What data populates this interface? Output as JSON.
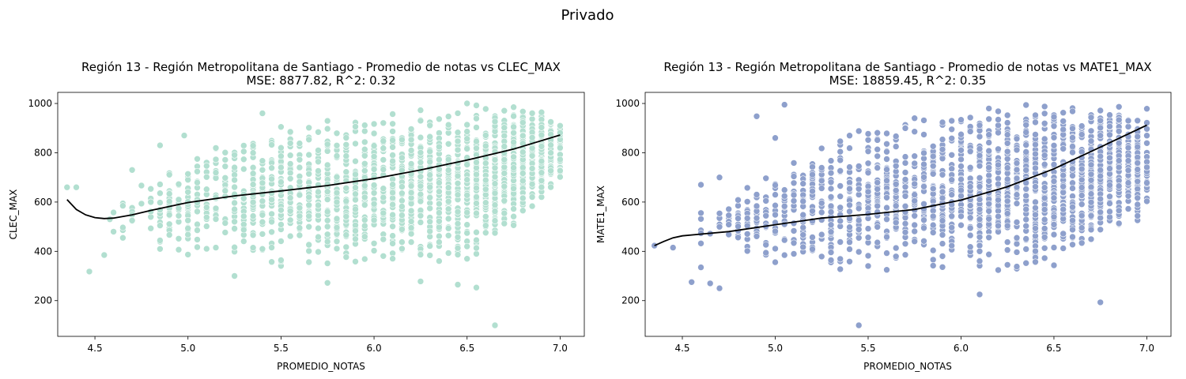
{
  "figure": {
    "suptitle": "Privado"
  },
  "chart_data": [
    {
      "type": "scatter",
      "title": "Región 13 - Región Metropolitana de Santiago - Promedio de notas vs CLEC_MAX",
      "subtitle": "MSE: 8877.82, R^2: 0.32",
      "xlabel": "PROMEDIO_NOTAS",
      "ylabel": "CLEC_MAX",
      "xlim": [
        4.3,
        7.13
      ],
      "ylim": [
        55,
        1045
      ],
      "xticks": [
        4.5,
        5.0,
        5.5,
        6.0,
        6.5,
        7.0
      ],
      "xtick_labels": [
        "4.5",
        "5.0",
        "5.5",
        "6.0",
        "6.5",
        "7.0"
      ],
      "yticks": [
        200,
        400,
        600,
        800,
        1000
      ],
      "ytick_labels": [
        "200",
        "400",
        "600",
        "800",
        "1000"
      ],
      "grid": false,
      "point_color": "#b2dfd0",
      "trend_color": "#000000",
      "trend": {
        "x": [
          4.35,
          4.4,
          4.45,
          4.5,
          4.55,
          4.6,
          4.7,
          4.8,
          5.0,
          5.25,
          5.5,
          5.75,
          6.0,
          6.25,
          6.5,
          6.75,
          7.0
        ],
        "y": [
          610,
          570,
          548,
          537,
          533,
          535,
          548,
          566,
          598,
          625,
          645,
          667,
          695,
          730,
          770,
          815,
          872
        ]
      },
      "notable_points": {
        "x": [
          4.35,
          4.4,
          4.47,
          4.55,
          4.58,
          4.65,
          4.7,
          4.8,
          4.85,
          4.98,
          5.25,
          5.4,
          5.75,
          6.25,
          6.45,
          6.55,
          6.65,
          6.5
        ],
        "y": [
          660,
          660,
          318,
          385,
          530,
          455,
          730,
          600,
          830,
          870,
          300,
          960,
          272,
          278,
          265,
          253,
          100,
          1000
        ]
      },
      "cloud": {
        "x_range": [
          4.55,
          7.0
        ],
        "lower_y": [
          {
            "x": 4.6,
            "y": 440
          },
          {
            "x": 5.0,
            "y": 360
          },
          {
            "x": 5.5,
            "y": 330
          },
          {
            "x": 6.0,
            "y": 330
          },
          {
            "x": 6.5,
            "y": 350
          },
          {
            "x": 7.0,
            "y": 640
          }
        ],
        "upper_y": [
          {
            "x": 4.6,
            "y": 680
          },
          {
            "x": 5.0,
            "y": 800
          },
          {
            "x": 5.5,
            "y": 920
          },
          {
            "x": 6.0,
            "y": 970
          },
          {
            "x": 6.5,
            "y": 1000
          },
          {
            "x": 7.0,
            "y": 1000
          }
        ]
      }
    },
    {
      "type": "scatter",
      "title": "Región 13 - Región Metropolitana de Santiago - Promedio de notas vs MATE1_MAX",
      "subtitle": "MSE: 18859.45, R^2: 0.35",
      "xlabel": "PROMEDIO_NOTAS",
      "ylabel": "MATE1_MAX",
      "xlim": [
        4.3,
        7.13
      ],
      "ylim": [
        55,
        1045
      ],
      "xticks": [
        4.5,
        5.0,
        5.5,
        6.0,
        6.5,
        7.0
      ],
      "xtick_labels": [
        "4.5",
        "5.0",
        "5.5",
        "6.0",
        "6.5",
        "7.0"
      ],
      "yticks": [
        200,
        400,
        600,
        800,
        1000
      ],
      "ytick_labels": [
        "200",
        "400",
        "600",
        "800",
        "1000"
      ],
      "grid": false,
      "point_color": "#8ea0cc",
      "trend_color": "#000000",
      "trend": {
        "x": [
          4.35,
          4.4,
          4.45,
          4.5,
          4.6,
          4.75,
          5.0,
          5.25,
          5.5,
          5.75,
          6.0,
          6.25,
          6.5,
          6.75,
          7.0
        ],
        "y": [
          423,
          440,
          455,
          463,
          470,
          480,
          508,
          535,
          550,
          570,
          608,
          662,
          735,
          823,
          912
        ]
      },
      "notable_points": {
        "x": [
          4.35,
          4.45,
          4.55,
          4.6,
          4.65,
          4.7,
          4.7,
          4.9,
          5.0,
          5.05,
          5.45,
          6.1,
          6.75,
          4.6
        ],
        "y": [
          423,
          415,
          275,
          335,
          270,
          250,
          700,
          948,
          860,
          995,
          100,
          225,
          193,
          670
        ]
      },
      "cloud": {
        "x_range": [
          4.55,
          7.0
        ],
        "lower_y": [
          {
            "x": 4.6,
            "y": 420
          },
          {
            "x": 5.0,
            "y": 340
          },
          {
            "x": 5.5,
            "y": 320
          },
          {
            "x": 6.0,
            "y": 310
          },
          {
            "x": 6.5,
            "y": 320
          },
          {
            "x": 7.0,
            "y": 540
          }
        ],
        "upper_y": [
          {
            "x": 4.6,
            "y": 560
          },
          {
            "x": 5.0,
            "y": 760
          },
          {
            "x": 5.5,
            "y": 940
          },
          {
            "x": 6.0,
            "y": 1000
          },
          {
            "x": 6.5,
            "y": 1000
          },
          {
            "x": 7.0,
            "y": 1000
          }
        ]
      }
    }
  ]
}
